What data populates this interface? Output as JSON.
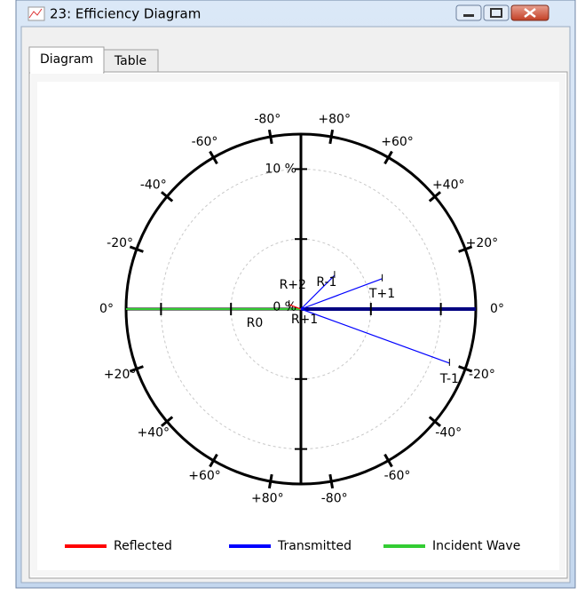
{
  "window": {
    "title": "23: Efficiency Diagram",
    "tabs": [
      "Diagram",
      "Table"
    ]
  },
  "chart_data": {
    "type": "polar",
    "series": [
      {
        "name": "Reflected",
        "color": "#ff0000"
      },
      {
        "name": "Transmitted",
        "color": "#0000ff"
      },
      {
        "name": "Incident Wave",
        "color": "#33cc33"
      }
    ],
    "rlim": [
      0,
      12.5
    ],
    "rgrid": [
      5,
      10
    ],
    "rticks": [
      {
        "value": 0,
        "label": "0 %"
      },
      {
        "value": 10,
        "label": "10 %"
      }
    ],
    "right_angle_ticks": [
      {
        "value": 0,
        "label": "0°"
      },
      {
        "value": 20,
        "label": "+20°"
      },
      {
        "value": 40,
        "label": "+40°"
      },
      {
        "value": 60,
        "label": "+60°"
      },
      {
        "value": 80,
        "label": "+80°"
      },
      {
        "value": -20,
        "label": "-20°"
      },
      {
        "value": -40,
        "label": "-40°"
      },
      {
        "value": -60,
        "label": "-60°"
      },
      {
        "value": -80,
        "label": "-80°"
      }
    ],
    "left_angle_ticks": [
      {
        "value": 0,
        "label": "0°"
      },
      {
        "value": -20,
        "label": "-20°"
      },
      {
        "value": -40,
        "label": "-40°"
      },
      {
        "value": -60,
        "label": "-60°"
      },
      {
        "value": -80,
        "label": "-80°"
      },
      {
        "value": 20,
        "label": "+20°"
      },
      {
        "value": 40,
        "label": "+40°"
      },
      {
        "value": 60,
        "label": "+60°"
      },
      {
        "value": 80,
        "label": "+80°"
      }
    ],
    "orders": [
      {
        "label": "R+2",
        "series": 0,
        "side": "left",
        "angle": -21,
        "efficiency": 0.9
      },
      {
        "label": "R-1",
        "series": 1,
        "side": "right",
        "angle": 45,
        "efficiency": 3.4
      },
      {
        "label": "T+1",
        "series": 1,
        "side": "right",
        "angle": 20.5,
        "efficiency": 6.2
      },
      {
        "label": "T-1",
        "series": 1,
        "side": "right",
        "angle": -20,
        "efficiency": 11.3
      },
      {
        "label": "R0",
        "series": 0,
        "side": "left",
        "angle": 0,
        "efficiency": 0
      },
      {
        "label": "R+1",
        "series": 0,
        "side": "left",
        "angle": 0,
        "efficiency": 0
      }
    ]
  }
}
